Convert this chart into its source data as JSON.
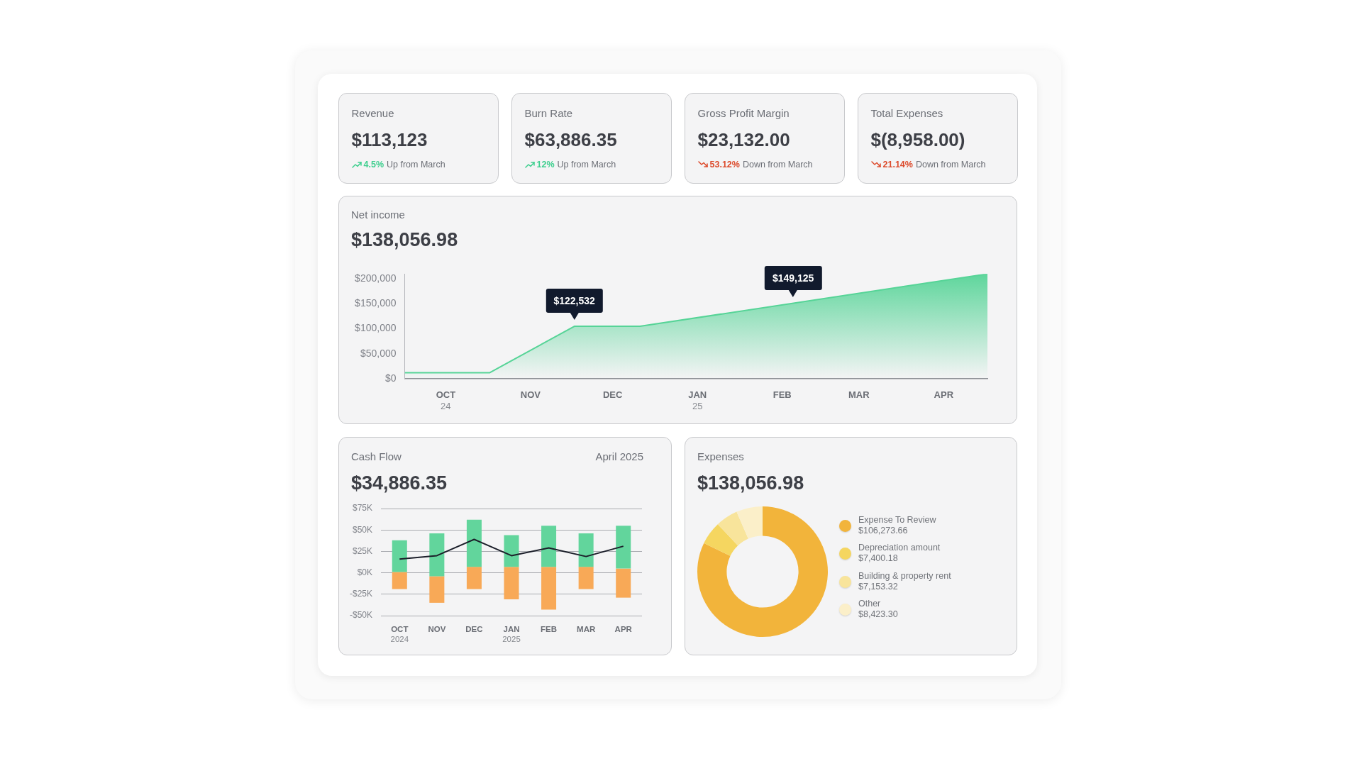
{
  "chart_data": [
    {
      "type": "other",
      "categories": [
        "Revenue",
        "Burn Rate",
        "Gross Profit Margin",
        "Total Expenses"
      ],
      "value_labels": [
        "$113,123",
        "$63,886.35",
        "$23,132.00",
        "$(8,958.00)"
      ],
      "series": [
        {
          "values": [
            4.5,
            12,
            null,
            null
          ],
          "value_labels": [
            "4.5%",
            "12%",
            null,
            null
          ],
          "color": "#3ecf8e"
        },
        {
          "values": [
            null,
            null,
            53.12,
            21.14
          ],
          "value_labels": [
            null,
            null,
            "53.12%",
            "21.14%"
          ],
          "color": "#dc4a2b"
        }
      ],
      "annotations": [
        "Up from March",
        "Up from March",
        "Down from March",
        "Down from March"
      ]
    },
    {
      "type": "area",
      "title": "Net income",
      "subtitle": "$138,056.98",
      "x": [
        "2024-09-16",
        "2024-10-17",
        "2024-11-17",
        "2024-12-11",
        "2025-04-17"
      ],
      "values": [
        12000,
        12000,
        105000,
        105000,
        210000
      ],
      "color": "#56d497",
      "marker": "none",
      "xlim": [
        "2024-09-16",
        "2025-04-17"
      ],
      "xticks": [
        {
          "value": "2024-10",
          "label": "OCT\n24"
        },
        {
          "value": "2024-11",
          "label": "NOV"
        },
        {
          "value": "2024-12",
          "label": "DEC"
        },
        {
          "value": "2025-01",
          "label": "JAN\n25"
        },
        {
          "value": "2025-02",
          "label": "FEB"
        },
        {
          "value": "2025-03",
          "label": "MAR"
        },
        {
          "value": "2025-04",
          "label": "APR"
        }
      ],
      "ylim": [
        0,
        210000
      ],
      "yticks": [
        {
          "value": 0,
          "label": "$0"
        },
        {
          "value": 50000,
          "label": "$50,000"
        },
        {
          "value": 100000,
          "label": "$100,000"
        },
        {
          "value": 150000,
          "label": "$150,000"
        },
        {
          "value": 200000,
          "label": "$200,000"
        }
      ],
      "annotations": [
        {
          "text": "$122,532",
          "x": "2024-11-17",
          "y": 105000
        },
        {
          "text": "$149,125",
          "x": "2025-02-05",
          "y": 151000
        }
      ]
    },
    {
      "type": "bar",
      "title": "Cash Flow",
      "subtitle": "$34,886.35",
      "annotations": [
        "April 2025"
      ],
      "categories": [
        "OCT\n2024",
        "NOV",
        "DEC",
        "JAN\n2025",
        "FEB",
        "MAR",
        "APR"
      ],
      "series": [
        {
          "color": "#62d59c",
          "base": [
            1,
            -4,
            7,
            7,
            7,
            7,
            5
          ],
          "values": [
            37,
            50,
            55,
            37,
            48,
            39,
            50
          ]
        },
        {
          "color": "#f8a957",
          "base": [
            1,
            -4,
            7,
            7,
            7,
            7,
            5
          ],
          "values": [
            -20,
            -31,
            -26,
            -38,
            -50,
            -26,
            -34
          ]
        },
        {
          "type": "line",
          "color": "#1c1f2a",
          "values": [
            16,
            20,
            39,
            20,
            29,
            19,
            31
          ]
        }
      ],
      "marker": "none",
      "ylim": [
        -50,
        75
      ],
      "yticks": [
        {
          "value": -50,
          "label": "-$50K"
        },
        {
          "value": -25,
          "label": "-$25K"
        },
        {
          "value": 0,
          "label": "$0K"
        },
        {
          "value": 25,
          "label": "$25K"
        },
        {
          "value": 50,
          "label": "$50K"
        },
        {
          "value": 75,
          "label": "$75K"
        }
      ],
      "grid": "y"
    },
    {
      "type": "donut",
      "title": "Expenses",
      "subtitle": "$138,056.98",
      "categories": [
        "Expense To Review",
        "Depreciation amount",
        "Building & property rent",
        "Other"
      ],
      "values": [
        106273.66,
        7400.18,
        7153.32,
        8423.3
      ],
      "value_labels": [
        "$106,273.66",
        "$7,400.18",
        "$7,153.32",
        "$8,423.30"
      ],
      "colors": [
        "#f2b43b",
        "#f5d660",
        "#f8e49b",
        "#fbefc9"
      ],
      "legend": "right"
    }
  ]
}
